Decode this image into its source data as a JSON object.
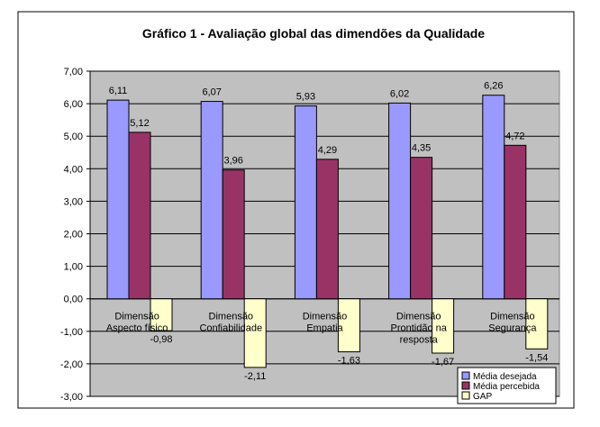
{
  "chart_data": {
    "type": "bar",
    "title": "Gráfico 1 - Avaliação global das dimendões da Qualidade",
    "categories": [
      [
        "Dimensão",
        "Aspecto físico"
      ],
      [
        "Dimensão",
        "Confiabilidade"
      ],
      [
        "Dimensão",
        "Empatia"
      ],
      [
        "Dimensão",
        "Prontidão na",
        "resposta"
      ],
      [
        "Dimensão",
        "Segurança"
      ]
    ],
    "series": [
      {
        "name": "Média desejada",
        "values": [
          6.11,
          6.07,
          5.93,
          6.02,
          6.26
        ],
        "color": "#9999ff"
      },
      {
        "name": "Média percebida",
        "values": [
          5.12,
          3.96,
          4.29,
          4.35,
          4.72
        ],
        "color": "#993366"
      },
      {
        "name": "GAP",
        "values": [
          -0.98,
          -2.11,
          -1.63,
          -1.67,
          -1.54
        ],
        "color": "#ffffcc"
      }
    ],
    "ylim": [
      -3,
      7
    ],
    "yticks": [
      7,
      6,
      5,
      4,
      3,
      2,
      1,
      0,
      -1,
      -2,
      -3
    ],
    "tick_labels": [
      "7,00",
      "6,00",
      "5,00",
      "4,00",
      "3,00",
      "2,00",
      "1,00",
      "0,00",
      "-1,00",
      "-2,00",
      "-3,00"
    ],
    "data_labels": [
      [
        "6,11",
        "6,07",
        "5,93",
        "6,02",
        "6,26"
      ],
      [
        "5,12",
        "3,96",
        "4,29",
        "4,35",
        "4,72"
      ],
      [
        "-0,98",
        "-2,11",
        "-1,63",
        "-1,67",
        "-1,54"
      ]
    ],
    "legend_position": "bottom-right",
    "plot_background": "#c0c0c0",
    "grid": true
  }
}
